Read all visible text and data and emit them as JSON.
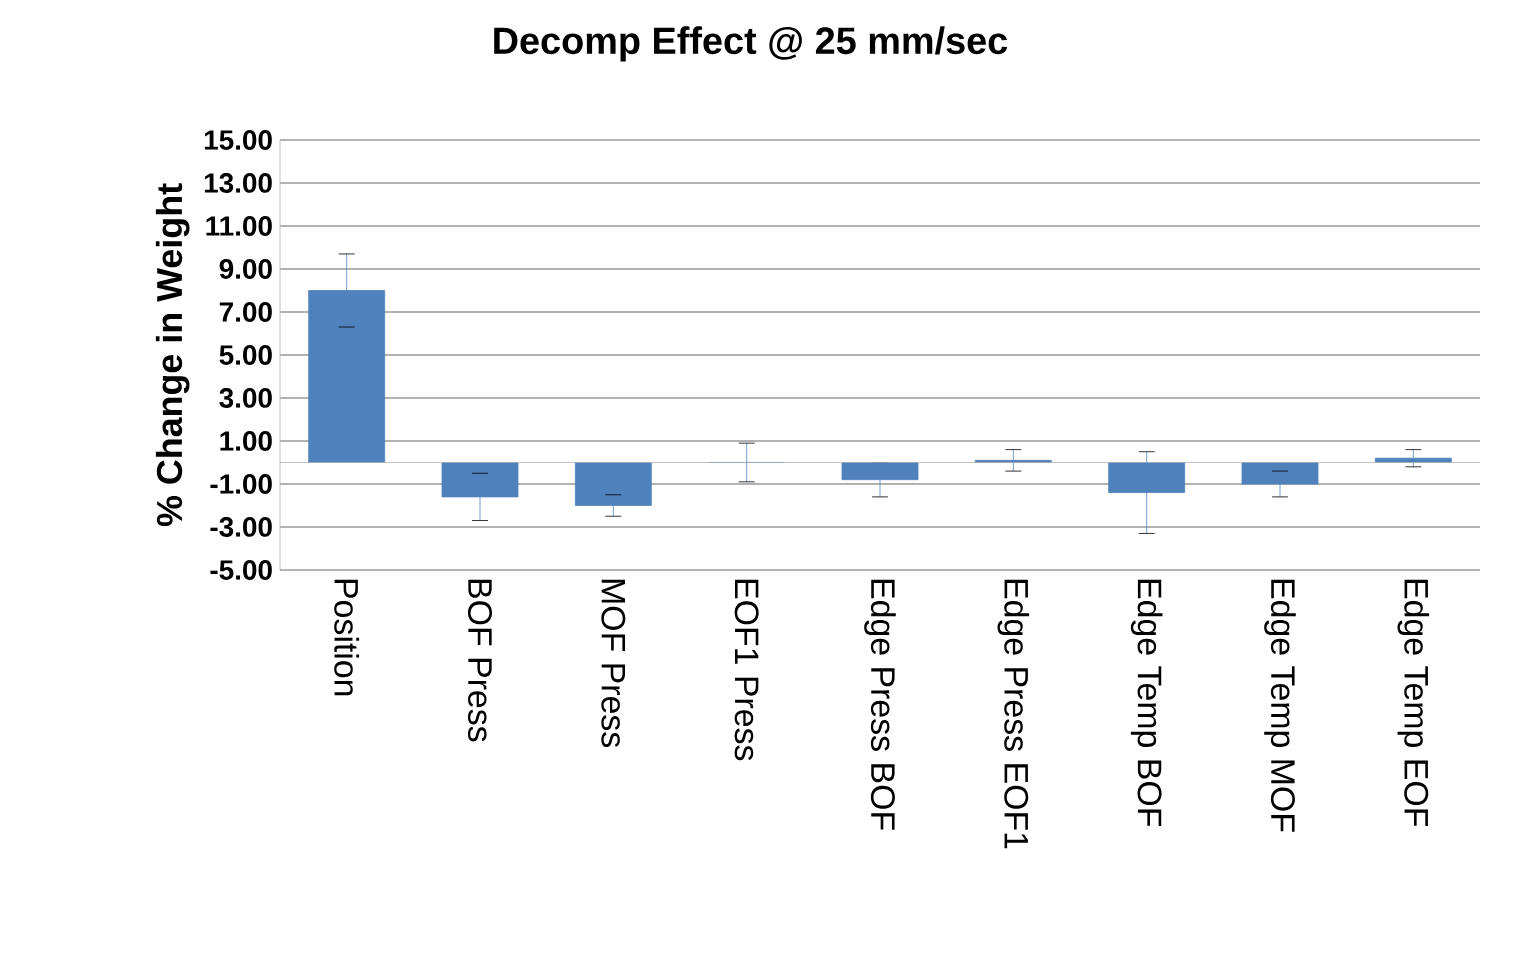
{
  "chart_data": {
    "type": "bar",
    "title": "Decomp Effect @ 25 mm/sec",
    "ylabel": "% Change in Weight",
    "categories": [
      "Position",
      "BOF Press",
      "MOF Press",
      "EOF1 Press",
      "Edge Press BOF",
      "Edge Press EOF1",
      "Edge Temp BOF",
      "Edge Temp MOF",
      "Edge Temp EOF"
    ],
    "values": [
      8.0,
      -1.6,
      -2.0,
      0.0,
      -0.8,
      0.1,
      -1.4,
      -1.0,
      0.2
    ],
    "errors": [
      1.7,
      1.1,
      0.5,
      0.9,
      0.8,
      0.5,
      1.9,
      0.6,
      0.4
    ],
    "color": "#4f81bd",
    "ylim": [
      -5,
      15
    ],
    "yticks": [
      {
        "value": -5,
        "label": "-5.00"
      },
      {
        "value": -3,
        "label": "-3.00"
      },
      {
        "value": -1,
        "label": "-1.00"
      },
      {
        "value": 1,
        "label": "1.00"
      },
      {
        "value": 3,
        "label": "3.00"
      },
      {
        "value": 5,
        "label": "5.00"
      },
      {
        "value": 7,
        "label": "7.00"
      },
      {
        "value": 9,
        "label": "9.00"
      },
      {
        "value": 11,
        "label": "11.00"
      },
      {
        "value": 13,
        "label": "13.00"
      },
      {
        "value": 15,
        "label": "15.00"
      }
    ],
    "grid": "y"
  }
}
